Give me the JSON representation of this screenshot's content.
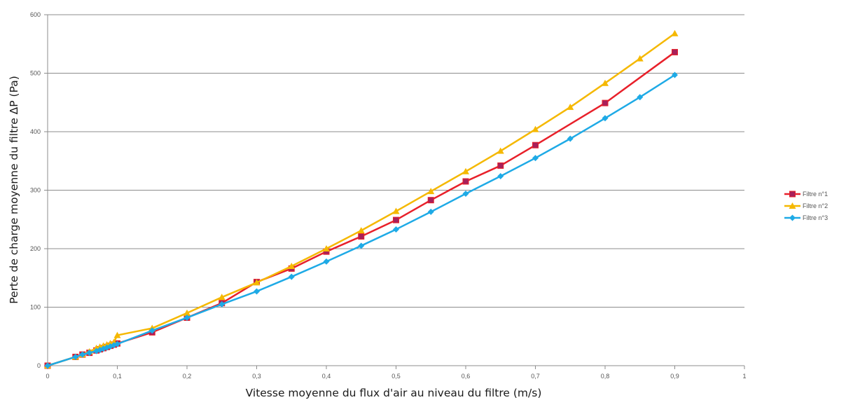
{
  "chart_data": {
    "type": "line",
    "xlabel": "Vitesse moyenne du flux d'air au niveau du filtre (m/s)",
    "ylabel": "Perte de charge moyenne du filtre ΔP (Pa)",
    "xlim": [
      0,
      1
    ],
    "ylim": [
      0,
      600
    ],
    "x_ticks": [
      0,
      0.1,
      0.2,
      0.3,
      0.4,
      0.5,
      0.6,
      0.7,
      0.8,
      0.9,
      1
    ],
    "x_tick_labels": [
      "0",
      "0,1",
      "0,2",
      "0,3",
      "0,4",
      "0,5",
      "0,6",
      "0,7",
      "0,8",
      "0,9",
      "1"
    ],
    "y_ticks": [
      0,
      100,
      200,
      300,
      400,
      500,
      600
    ],
    "y_tick_labels": [
      "0",
      "100",
      "200",
      "300",
      "400",
      "500",
      "600"
    ],
    "grid": "horizontal",
    "legend_position": "right",
    "series": [
      {
        "name": "Filtre n°1",
        "color": "#e8202a",
        "marker": "square",
        "marker_fill": "#a8205a",
        "points": [
          [
            0,
            0
          ],
          [
            0.04,
            15
          ],
          [
            0.05,
            19
          ],
          [
            0.06,
            22
          ],
          [
            0.07,
            26
          ],
          [
            0.075,
            28
          ],
          [
            0.08,
            30
          ],
          [
            0.085,
            32
          ],
          [
            0.09,
            34
          ],
          [
            0.095,
            36
          ],
          [
            0.1,
            38
          ],
          [
            0.15,
            57
          ],
          [
            0.2,
            82
          ],
          [
            0.25,
            107
          ],
          [
            0.3,
            143
          ],
          [
            0.35,
            166
          ],
          [
            0.4,
            195
          ],
          [
            0.45,
            221
          ],
          [
            0.5,
            249
          ],
          [
            0.55,
            283
          ],
          [
            0.6,
            315
          ],
          [
            0.65,
            342
          ],
          [
            0.7,
            377
          ],
          [
            0.8,
            449
          ],
          [
            0.9,
            536
          ]
        ]
      },
      {
        "name": "Filtre n°2",
        "color": "#f5b800",
        "marker": "triangle",
        "marker_fill": "#f5b800",
        "points": [
          [
            0,
            0
          ],
          [
            0.04,
            15
          ],
          [
            0.05,
            19
          ],
          [
            0.06,
            24
          ],
          [
            0.07,
            30
          ],
          [
            0.075,
            32
          ],
          [
            0.08,
            34
          ],
          [
            0.085,
            36
          ],
          [
            0.09,
            38
          ],
          [
            0.095,
            40
          ],
          [
            0.1,
            52
          ],
          [
            0.15,
            64
          ],
          [
            0.2,
            90
          ],
          [
            0.25,
            117
          ],
          [
            0.3,
            142
          ],
          [
            0.35,
            170
          ],
          [
            0.4,
            200
          ],
          [
            0.45,
            231
          ],
          [
            0.5,
            264
          ],
          [
            0.55,
            298
          ],
          [
            0.6,
            332
          ],
          [
            0.65,
            367
          ],
          [
            0.7,
            404
          ],
          [
            0.75,
            442
          ],
          [
            0.8,
            483
          ],
          [
            0.85,
            525
          ],
          [
            0.9,
            568
          ]
        ]
      },
      {
        "name": "Filtre n°3",
        "color": "#1eaae6",
        "marker": "diamond",
        "marker_fill": "#1eaae6",
        "points": [
          [
            0,
            0
          ],
          [
            0.04,
            15
          ],
          [
            0.05,
            19
          ],
          [
            0.06,
            22
          ],
          [
            0.07,
            25
          ],
          [
            0.075,
            27
          ],
          [
            0.08,
            29
          ],
          [
            0.085,
            31
          ],
          [
            0.09,
            33
          ],
          [
            0.095,
            35
          ],
          [
            0.1,
            37
          ],
          [
            0.15,
            60
          ],
          [
            0.2,
            82
          ],
          [
            0.25,
            105
          ],
          [
            0.3,
            127
          ],
          [
            0.35,
            152
          ],
          [
            0.4,
            178
          ],
          [
            0.45,
            205
          ],
          [
            0.5,
            233
          ],
          [
            0.55,
            263
          ],
          [
            0.6,
            294
          ],
          [
            0.65,
            324
          ],
          [
            0.7,
            355
          ],
          [
            0.75,
            388
          ],
          [
            0.8,
            423
          ],
          [
            0.85,
            459
          ],
          [
            0.9,
            497
          ]
        ]
      }
    ]
  }
}
